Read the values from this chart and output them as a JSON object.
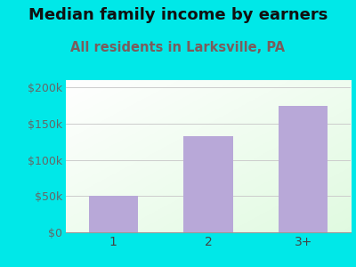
{
  "categories": [
    "1",
    "2",
    "3+"
  ],
  "values": [
    50000,
    133000,
    175000
  ],
  "bar_color": "#b8a8d8",
  "title": "Median family income by earners",
  "subtitle": "All residents in Larksville, PA",
  "title_fontsize": 13,
  "subtitle_fontsize": 10.5,
  "subtitle_color": "#7a5c5c",
  "title_color": "#111111",
  "background_color": "#00e8e8",
  "ylim": [
    0,
    210000
  ],
  "yticks": [
    0,
    50000,
    100000,
    150000,
    200000
  ],
  "ytick_labels": [
    "$0",
    "$50k",
    "$100k",
    "$150k",
    "$200k"
  ],
  "grad_color_topleft": "#d6eed6",
  "grad_color_bottomright": "#f0f8f0",
  "grad_color_top": "#e8f8f0",
  "grad_color_bottom": "#f8fff8"
}
